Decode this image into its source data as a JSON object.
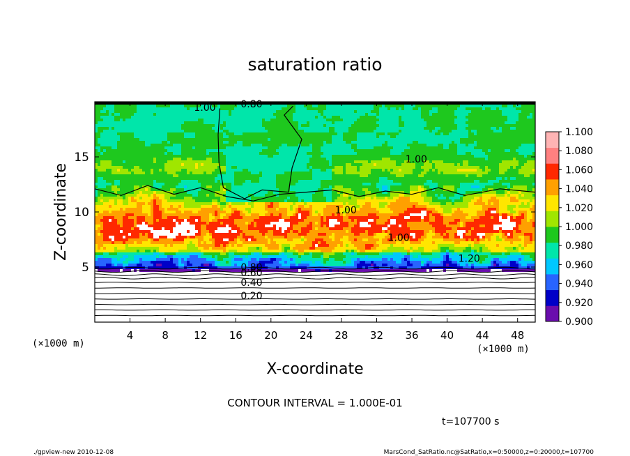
{
  "chart_data": {
    "type": "heatmap",
    "title": "saturation ratio",
    "xlabel": "X-coordinate",
    "ylabel": "Z-coordinate",
    "x_unit": "(×1000 m)",
    "y_unit": "(×1000 m)",
    "xlim": [
      0,
      50
    ],
    "ylim": [
      0,
      20
    ],
    "x_ticks": [
      4,
      8,
      12,
      16,
      20,
      24,
      28,
      32,
      36,
      40,
      44,
      48
    ],
    "y_ticks": [
      5,
      10,
      15
    ],
    "colorbar": {
      "levels": [
        0.9,
        0.92,
        0.94,
        0.96,
        0.98,
        1.0,
        1.02,
        1.04,
        1.06,
        1.08,
        1.1
      ],
      "labels": [
        "0.900",
        "0.920",
        "0.940",
        "0.960",
        "0.980",
        "1.000",
        "1.020",
        "1.040",
        "1.060",
        "1.080",
        "1.100"
      ],
      "colors": [
        "#6a0dad",
        "#0000c8",
        "#2864ff",
        "#00c8ff",
        "#00e6aa",
        "#1ec81e",
        "#a0e600",
        "#ffe600",
        "#ffa000",
        "#ff2800",
        "#ff8080",
        "#ffb4b4"
      ]
    },
    "contour_labels": [
      {
        "text": "0.20",
        "x": 17.8,
        "z": 2.4
      },
      {
        "text": "0.40",
        "x": 17.8,
        "z": 3.6
      },
      {
        "text": "0.60",
        "x": 17.8,
        "z": 4.5
      },
      {
        "text": "0.80",
        "x": 17.8,
        "z": 5.0
      },
      {
        "text": "0.80",
        "x": 17.8,
        "z": 19.8
      },
      {
        "text": "1.00",
        "x": 12.5,
        "z": 19.5
      },
      {
        "text": "1.00",
        "x": 28.5,
        "z": 10.2
      },
      {
        "text": "1.00",
        "x": 34.5,
        "z": 7.7
      },
      {
        "text": "1.00",
        "x": 36.5,
        "z": 14.8
      },
      {
        "text": "1.20",
        "x": 42.5,
        "z": 5.8
      }
    ],
    "contour_interval_text": "CONTOUR INTERVAL = 1.000E-01",
    "time_text": "t=107700  s"
  },
  "footer": {
    "left": "./gpview-new   2010-12-08",
    "right": "MarsCond_SatRatio.nc@SatRatio,x=0:50000,z=0:20000,t=107700"
  }
}
